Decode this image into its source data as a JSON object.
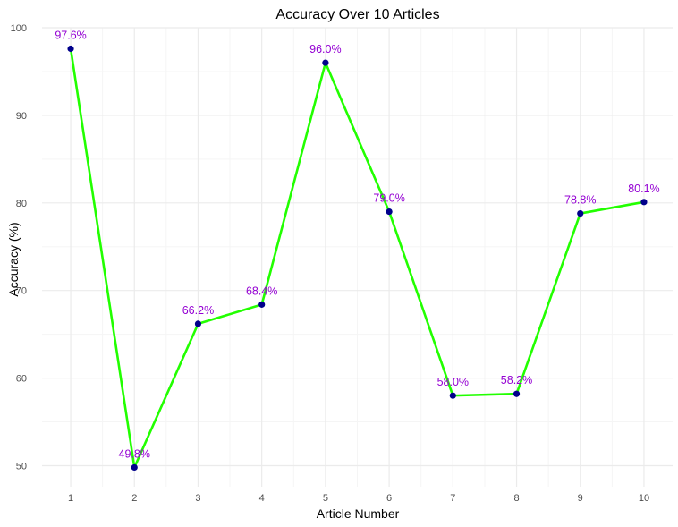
{
  "chart_data": {
    "type": "line",
    "title": "Accuracy Over 10 Articles",
    "xlabel": "Article Number",
    "ylabel": "Accuracy (%)",
    "x": [
      1,
      2,
      3,
      4,
      5,
      6,
      7,
      8,
      9,
      10
    ],
    "y_ticks": [
      50,
      60,
      70,
      80,
      90,
      100
    ],
    "xlim": [
      0.55,
      10.45
    ],
    "ylim": [
      47.6,
      100
    ],
    "grid": true,
    "legend": "none",
    "series": [
      {
        "values": [
          97.6,
          49.8,
          66.2,
          68.4,
          96.0,
          79.0,
          58.0,
          58.2,
          78.8,
          80.1
        ],
        "labels": [
          "97.6%",
          "49.8%",
          "66.2%",
          "68.4%",
          "96.0%",
          "79.0%",
          "58.0%",
          "58.2%",
          "78.8%",
          "80.1%"
        ]
      }
    ],
    "colors": {
      "line": "#22ff00",
      "point": "#00008b",
      "label": "#9400d3",
      "grid_major": "#ebebeb",
      "grid_minor": "#f5f5f5"
    }
  }
}
